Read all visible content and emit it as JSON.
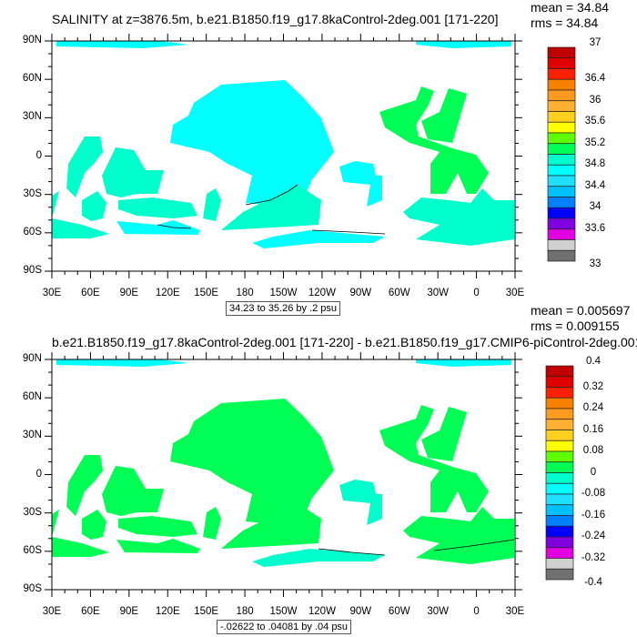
{
  "panels": [
    {
      "title": "SALINITY at z=3876.5m, b.e21.B1850.f19_g17.8kaControl-2deg.001 [171-220]",
      "mean": "mean = 34.84",
      "rms": "rms = 34.84",
      "range_label": "34.23 to 35.26 by .2 psu",
      "lat_labels": [
        "90N",
        "60N",
        "30N",
        "0",
        "30S",
        "60S",
        "90S"
      ],
      "lon_labels": [
        "30E",
        "60E",
        "90E",
        "120E",
        "150E",
        "180",
        "150W",
        "120W",
        "90W",
        "60W",
        "30W",
        "0",
        "30E"
      ],
      "colorbar": {
        "max": 37,
        "min": 33,
        "step": 0.2,
        "labels": [
          "37",
          "36.4",
          "36",
          "35.6",
          "35.2",
          "34.8",
          "34.4",
          "34",
          "33.6",
          "33"
        ],
        "label_values": [
          37,
          36.4,
          36,
          35.6,
          35.2,
          34.8,
          34.4,
          34,
          33.6,
          33
        ]
      },
      "region_fills": [
        "#00ffff",
        "#00ffcc",
        "#00ffcc",
        "#00ffcc",
        "#00ffcc",
        "#00ffcc",
        "#00ffff",
        "#00ffcc",
        "#00ff55",
        "#00ff55",
        "#00ffcc",
        "#00ffff",
        "#00ffcc",
        "#00ffff",
        "#00ffff"
      ]
    },
    {
      "title": "b.e21.B1850.f19_g17.8kaControl-2deg.001 [171-220] - b.e21.B1850.f19_g17.CMIP6-piControl-2deg.001",
      "mean": "mean = 0.005697",
      "rms": "rms = 0.009155",
      "range_label": "-.02622 to .04081 by .04 psu",
      "lat_labels": [
        "90N",
        "60N",
        "30N",
        "0",
        "30S",
        "60S",
        "90S"
      ],
      "lon_labels": [
        "30E",
        "60E",
        "90E",
        "120E",
        "150E",
        "180",
        "150W",
        "120W",
        "90W",
        "60W",
        "30W",
        "0",
        "30E"
      ],
      "colorbar": {
        "max": 0.4,
        "min": -0.4,
        "step": 0.04,
        "labels": [
          "0.4",
          "0.32",
          "0.24",
          "0.16",
          "0.08",
          "0",
          "-0.08",
          "-0.16",
          "-0.24",
          "-0.32",
          "-0.4"
        ],
        "label_values": [
          0.4,
          0.32,
          0.24,
          0.16,
          0.08,
          0,
          -0.08,
          -0.16,
          -0.24,
          -0.32,
          -0.4
        ]
      },
      "region_fills": [
        "#00ff55",
        "#00ff55",
        "#00ff55",
        "#00ff55",
        "#00ff55",
        "#00ff55",
        "#00ff55",
        "#00ff55",
        "#00ff55",
        "#00ff55",
        "#00ff55",
        "#00ffcc",
        "#00ff55",
        "#00ffcc",
        "#00ffff"
      ]
    }
  ],
  "colorbar_colors": [
    "#c00000",
    "#e00000",
    "#ff2000",
    "#f88000",
    "#ff9a20",
    "#ffb030",
    "#ffd020",
    "#ffff00",
    "#60ff00",
    "#00ff55",
    "#00ffcc",
    "#00ffff",
    "#20e0ff",
    "#00c0ff",
    "#0080ff",
    "#0000ff",
    "#8000e0",
    "#e000e0",
    "#d0d0d0",
    "#707070"
  ]
}
